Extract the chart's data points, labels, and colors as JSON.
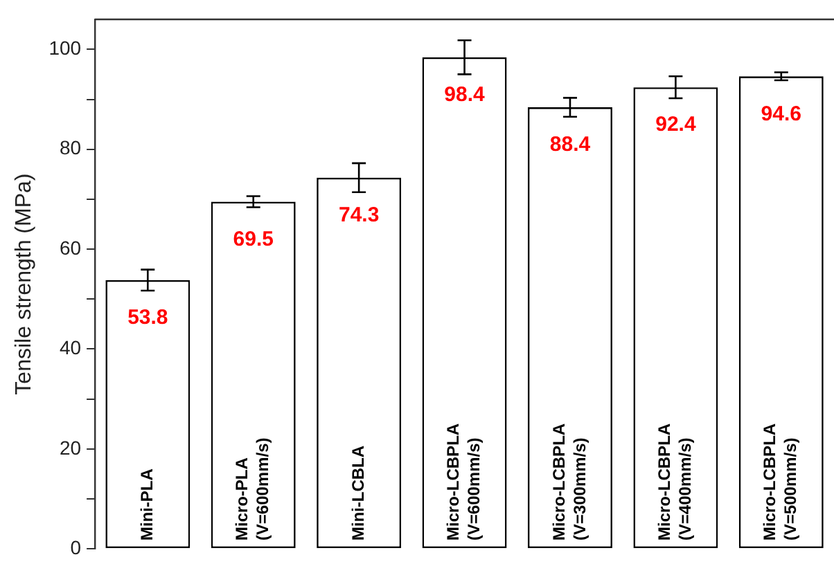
{
  "chart_data": {
    "type": "bar",
    "ylabel": "Tensile strength (MPa)",
    "categories": [
      "Mini-PLA",
      "Micro-PLA (V=600mm/s)",
      "Mini-LCBLA",
      "Micro-LCBPLA (V=600mm/s)",
      "Micro-LCBPLA (V=300mm/s)",
      "Micro-LCBPLA (V=400mm/s)",
      "Micro-LCBPLA (V=500mm/s)"
    ],
    "values": [
      53.8,
      69.5,
      74.3,
      98.4,
      88.4,
      92.4,
      94.6
    ],
    "errors": [
      2.1,
      1.1,
      2.9,
      3.4,
      1.9,
      2.2,
      0.8
    ],
    "color": "#ffffff",
    "data_labels": true,
    "ylim": [
      0,
      106
    ],
    "yticks": [
      0,
      {
        "value": 10,
        "label": null
      },
      20,
      {
        "value": 30,
        "label": null
      },
      40,
      {
        "value": 50,
        "label": null
      },
      60,
      {
        "value": 70,
        "label": null
      },
      80,
      {
        "value": 90,
        "label": null
      },
      100
    ],
    "grid": false,
    "legend": false
  }
}
